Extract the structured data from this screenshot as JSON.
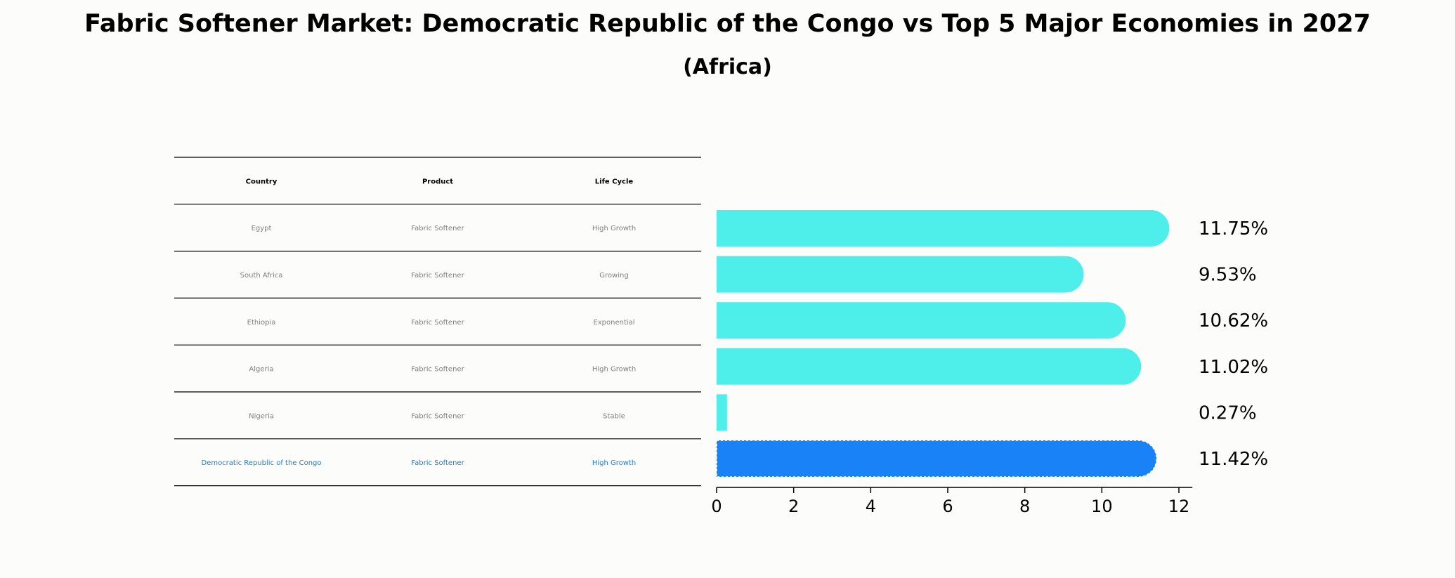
{
  "title": "Fabric Softener Market: Democratic Republic of the Congo vs Top 5 Major Economies in 2027",
  "subtitle": "(Africa)",
  "table": {
    "headers": [
      "Country",
      "Product",
      "Life Cycle"
    ],
    "rows": [
      [
        "Egypt",
        "Fabric Softener",
        "High Growth"
      ],
      [
        "South Africa",
        "Fabric Softener",
        "Growing"
      ],
      [
        "Ethiopia",
        "Fabric Softener",
        "Exponential"
      ],
      [
        "Algeria",
        "Fabric Softener",
        "High Growth"
      ],
      [
        "Nigeria",
        "Fabric Softener",
        "Stable"
      ],
      [
        "Democratic Republic of the Congo",
        "Fabric Softener",
        "High Growth"
      ]
    ],
    "highlight_row": 5
  },
  "chart_data": {
    "type": "bar",
    "orientation": "horizontal",
    "title": "Fabric Softener Market: Democratic Republic of the Congo vs Top 5 Major Economies in 2027",
    "subtitle": "(Africa)",
    "categories": [
      "Egypt",
      "South Africa",
      "Ethiopia",
      "Algeria",
      "Nigeria",
      "Democratic Republic of the Congo"
    ],
    "values": [
      11.75,
      9.53,
      10.62,
      11.02,
      0.27,
      11.42
    ],
    "value_labels": [
      "11.75%",
      "9.53%",
      "10.62%",
      "11.02%",
      "0.27%",
      "11.42%"
    ],
    "xlim": [
      0,
      12.35
    ],
    "xticks": [
      0,
      2,
      4,
      6,
      8,
      10,
      12
    ],
    "xlabel": "",
    "ylabel": "",
    "grid": false,
    "colors": {
      "default": "#4eeeea",
      "highlight": "#1a82f7"
    },
    "highlight_index": 5
  }
}
